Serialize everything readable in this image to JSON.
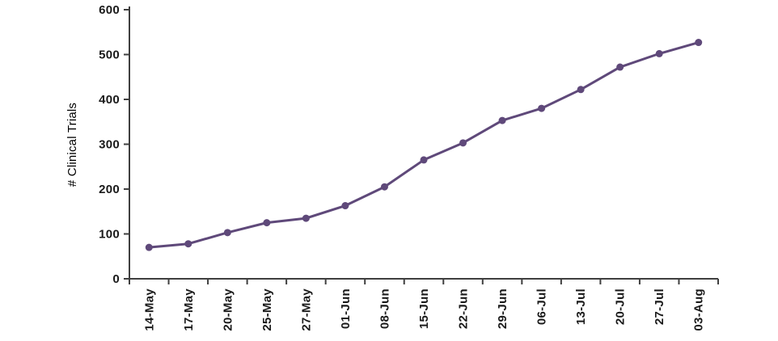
{
  "chart_data": {
    "type": "line",
    "title": "",
    "xlabel": "",
    "ylabel": "# Clinical Trials",
    "categories": [
      "14-May",
      "17-May",
      "20-May",
      "25-May",
      "27-May",
      "01-Jun",
      "08-Jun",
      "15-Jun",
      "22-Jun",
      "29-Jun",
      "06-Jul",
      "13-Jul",
      "20-Jul",
      "27-Jul",
      "03-Aug"
    ],
    "values": [
      70,
      78,
      103,
      125,
      135,
      163,
      205,
      265,
      303,
      353,
      380,
      422,
      472,
      502,
      527
    ],
    "ylim": [
      0,
      600
    ],
    "yticks": [
      0,
      100,
      200,
      300,
      400,
      500,
      600
    ],
    "line_color": "#5f497a",
    "marker": "circle",
    "grid": false,
    "legend": "none"
  }
}
